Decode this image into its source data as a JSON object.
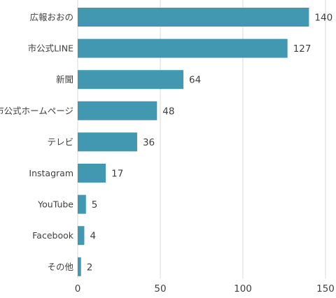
{
  "chart_data": {
    "type": "bar",
    "orientation": "horizontal",
    "categories": [
      "広報おおの",
      "市公式LINE",
      "新聞",
      "市公式ホームページ",
      "テレビ",
      "Instagram",
      "YouTube",
      "Facebook",
      "その他"
    ],
    "values": [
      140,
      127,
      64,
      48,
      36,
      17,
      5,
      4,
      2
    ],
    "xlim": [
      0,
      150
    ],
    "xticks": [
      0,
      50,
      100,
      150
    ],
    "title": "",
    "xlabel": "",
    "ylabel": "",
    "grid": "vertical",
    "legend": "none",
    "bar_color": "#4298b0",
    "grid_color": "#d9d9d9"
  }
}
